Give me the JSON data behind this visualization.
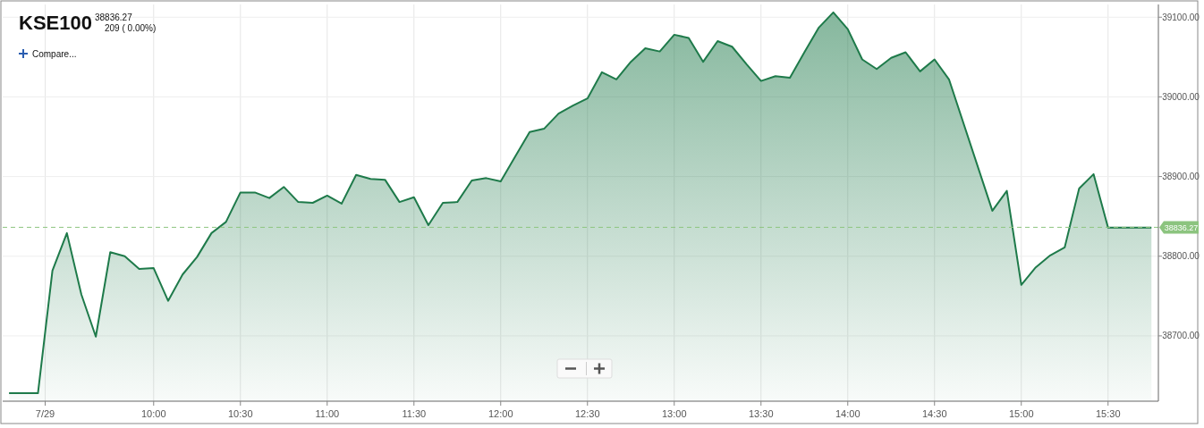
{
  "chart_data": {
    "type": "area",
    "title": "KSE100",
    "annotations": [
      "38836.27",
      "209 ( 0.00%)",
      "Compare..."
    ],
    "x": [
      9.1667,
      9.3333,
      9.4167,
      9.5,
      9.5833,
      9.6667,
      9.75,
      9.8333,
      9.9167,
      10,
      10.0833,
      10.1667,
      10.25,
      10.3333,
      10.4167,
      10.5,
      10.5833,
      10.6667,
      10.75,
      10.8333,
      10.9167,
      11,
      11.0833,
      11.1667,
      11.25,
      11.3333,
      11.4167,
      11.5,
      11.5833,
      11.6667,
      11.75,
      11.8333,
      11.9167,
      12,
      12.0833,
      12.1667,
      12.25,
      12.3333,
      12.4167,
      12.5,
      12.5833,
      12.6667,
      12.75,
      12.8333,
      12.9167,
      13,
      13.0833,
      13.1667,
      13.25,
      13.3333,
      13.4167,
      13.5,
      13.5833,
      13.6667,
      13.75,
      13.8333,
      13.9167,
      14,
      14.0833,
      14.1667,
      14.25,
      14.3333,
      14.4167,
      14.5,
      14.5833,
      14.8333,
      14.9167,
      15,
      15.0833,
      15.1667,
      15.25,
      15.3333,
      15.4167,
      15.5,
      15.75
    ],
    "series": [
      {
        "color": "#1e7a4a",
        "values": [
          38628,
          38628,
          38782,
          38829,
          38752,
          38699,
          38805,
          38800,
          38784,
          38785,
          38744,
          38777,
          38799,
          38829,
          38843,
          38880,
          38880,
          38873,
          38887,
          38868,
          38867,
          38876,
          38866,
          38902,
          38897,
          38896,
          38868,
          38874,
          38839,
          38867,
          38868,
          38895,
          38898,
          38894,
          38925,
          38956,
          38960,
          38979,
          38989,
          38998,
          39031,
          39022,
          39044,
          39061,
          39057,
          39078,
          39074,
          39044,
          39070,
          39063,
          39041,
          39020,
          39026,
          39024,
          39056,
          39087,
          39106,
          39085,
          39047,
          39035,
          39049,
          39056,
          39032,
          39047,
          39022,
          38857,
          38882,
          38764,
          38786,
          38801,
          38811,
          38885,
          38903,
          38836,
          38836
        ]
      }
    ],
    "xlim": [
      9.13,
      15.79
    ],
    "xticks": [
      {
        "value": 9.375,
        "label": "7/29"
      },
      {
        "value": 10,
        "label": "10:00"
      },
      {
        "value": 10.5,
        "label": "10:30"
      },
      {
        "value": 11,
        "label": "11:00"
      },
      {
        "value": 11.5,
        "label": "11:30"
      },
      {
        "value": 12,
        "label": "12:00"
      },
      {
        "value": 12.5,
        "label": "12:30"
      },
      {
        "value": 13,
        "label": "13:00"
      },
      {
        "value": 13.5,
        "label": "13:30"
      },
      {
        "value": 14,
        "label": "14:00"
      },
      {
        "value": 14.5,
        "label": "14:30"
      },
      {
        "value": 15,
        "label": "15:00"
      },
      {
        "value": 15.5,
        "label": "15:30"
      }
    ],
    "ylim": [
      38618,
      39116
    ],
    "yticks": [
      {
        "value": 38700,
        "label": "38700.00"
      },
      {
        "value": 38800,
        "label": "38800.00"
      },
      {
        "value": 38900,
        "label": "38900.00"
      },
      {
        "value": 39000,
        "label": "39000.00"
      },
      {
        "value": 39100,
        "label": "39100.00"
      }
    ],
    "ref_lines": [
      {
        "axis": "y",
        "value": 38836.27,
        "label": "38836.27",
        "color": "#8cc47f",
        "line_style": "dashed"
      }
    ],
    "grid": true
  }
}
